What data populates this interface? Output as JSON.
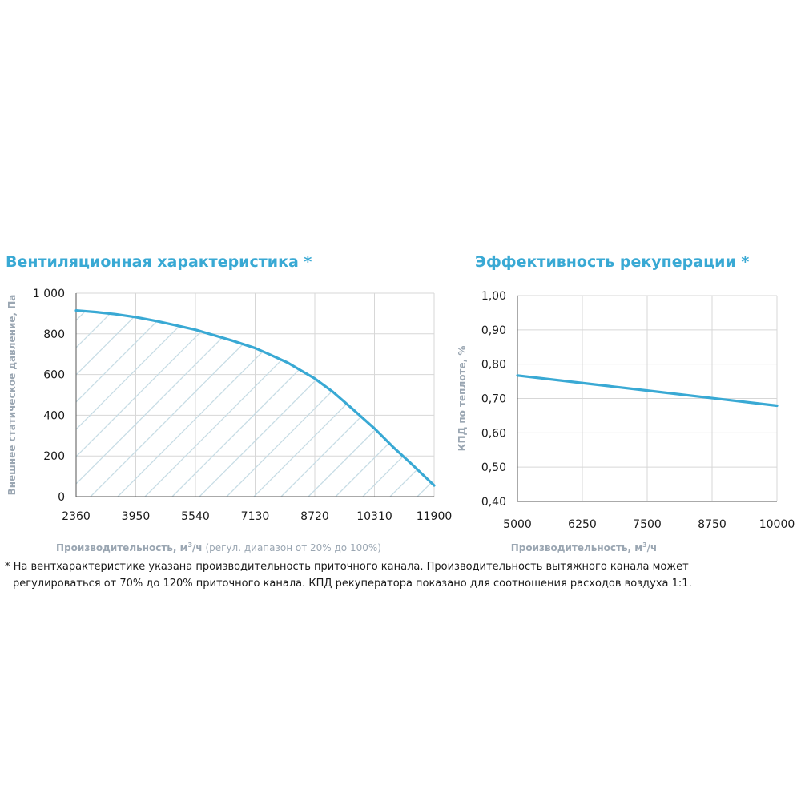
{
  "colors": {
    "accent": "#39a9d4",
    "label_gray": "#9aa6b2",
    "grid": "#d7d7d7",
    "hatch": "#c7dce5",
    "text": "#1a1a1a"
  },
  "footnote": {
    "line1": "* На вентхарактеристике указана производительность приточного канала. Производительность вытяжного канала может",
    "line2": "регулироваться от 70% до 120% приточного канала. КПД рекуператора показано для соотношения расходов воздуха 1:1."
  },
  "chart_data": [
    {
      "type": "area",
      "title": "Вентиляционная характеристика *",
      "ylabel": "Внешнее статическое давление, Па",
      "xlabel_main": "Производительность, м",
      "xlabel_sup": "3",
      "xlabel_unit": "/ч",
      "xlabel_note": " (регул. диапазон от 20% до 100%)",
      "xlim": [
        2360,
        11900
      ],
      "ylim": [
        0,
        1000
      ],
      "x_ticks": [
        2360,
        3950,
        5540,
        7130,
        8720,
        10310,
        11900
      ],
      "x_tick_labels": [
        "2360",
        "3950",
        "5540",
        "7130",
        "8720",
        "10310",
        "11900"
      ],
      "y_ticks": [
        0,
        200,
        400,
        600,
        800,
        1000
      ],
      "y_tick_labels": [
        "0",
        "200",
        "400",
        "600",
        "800",
        "1 000"
      ],
      "grid": true,
      "fill": "hatched",
      "series": [
        {
          "x": [
            2360,
            2900,
            3400,
            3950,
            4500,
            5000,
            5540,
            6000,
            6500,
            7130,
            7500,
            8000,
            8720,
            9200,
            9700,
            10310,
            10800,
            11300,
            11700,
            11900
          ],
          "values": [
            915,
            907,
            897,
            882,
            863,
            843,
            820,
            795,
            768,
            730,
            700,
            658,
            580,
            515,
            435,
            335,
            245,
            160,
            90,
            55
          ]
        }
      ]
    },
    {
      "type": "line",
      "title": "Эффективность рекуперации *",
      "ylabel": "КПД по теплоте, %",
      "xlabel_main": "Производительность, м",
      "xlabel_sup": "3",
      "xlabel_unit": "/ч",
      "xlim": [
        5000,
        10000
      ],
      "ylim": [
        0.4,
        1.0
      ],
      "x_ticks": [
        5000,
        6250,
        7500,
        8750,
        10000
      ],
      "x_tick_labels": [
        "5000",
        "6250",
        "7500",
        "8750",
        "10000"
      ],
      "y_ticks": [
        0.4,
        0.5,
        0.6,
        0.7,
        0.8,
        0.9,
        1.0
      ],
      "y_tick_labels": [
        "0,40",
        "0,50",
        "0,60",
        "0,70",
        "0,80",
        "0,90",
        "1,00"
      ],
      "grid": true,
      "series": [
        {
          "x": [
            5000,
            6250,
            7500,
            8750,
            10000
          ],
          "values": [
            0.767,
            0.745,
            0.723,
            0.701,
            0.679
          ]
        }
      ]
    }
  ]
}
